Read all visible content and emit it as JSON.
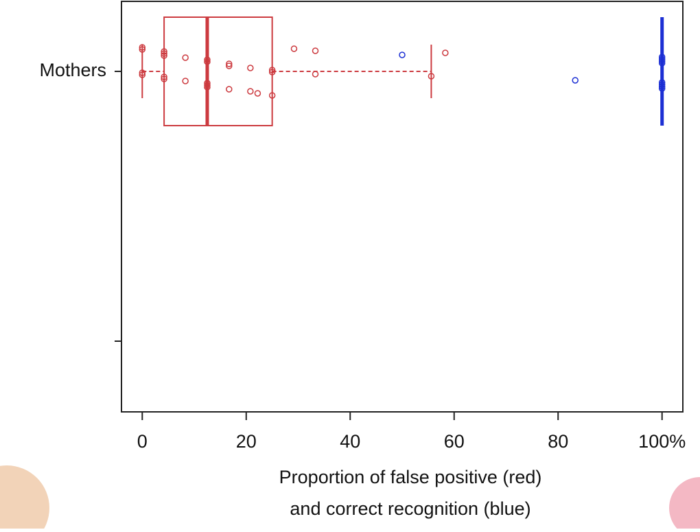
{
  "chart_data": {
    "type": "box",
    "categories": [
      "Mothers",
      null
    ],
    "xlabel": [
      "Proportion of false positive (red)",
      "and correct recognition (blue)"
    ],
    "xlim": [
      -4,
      104
    ],
    "xticks": [
      0,
      20,
      40,
      60,
      80,
      {
        "value": 100,
        "label": "100%"
      }
    ],
    "series": [
      {
        "color": "#cc3a3f",
        "whislo": 0,
        "q1": 4.2,
        "med": 12.5,
        "q3": 25,
        "whishi": 55.6,
        "points": [
          0,
          0,
          0,
          0,
          4.2,
          4.2,
          4.2,
          4.2,
          4.2,
          8.3,
          8.3,
          12.5,
          12.5,
          12.5,
          12.5,
          12.5,
          16.7,
          16.7,
          16.7,
          20.8,
          20.8,
          22.2,
          25,
          25,
          25,
          29.2,
          33.3,
          33.3,
          55.6,
          58.3
        ]
      },
      {
        "color": "#1c2fd4",
        "whislo": 100,
        "q1": 100,
        "med": 100,
        "q3": 100,
        "whishi": 100,
        "points": [
          50,
          83.3,
          100,
          100,
          100,
          100,
          100,
          100,
          100,
          100
        ]
      }
    ]
  }
}
